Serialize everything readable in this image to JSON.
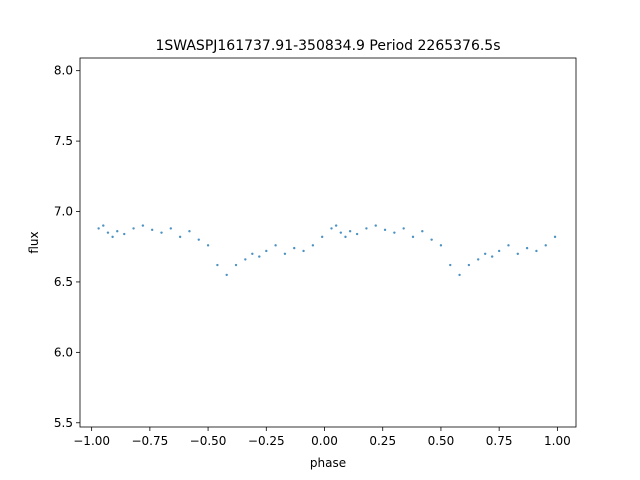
{
  "chart_data": {
    "type": "scatter",
    "title": "1SWASPJ161737.91-350834.9 Period 2265376.5s",
    "xlabel": "phase",
    "ylabel": "flux",
    "xlim": [
      -1.05,
      1.08
    ],
    "ylim": [
      5.47,
      8.09
    ],
    "x_ticks": [
      -1.0,
      -0.75,
      -0.5,
      -0.25,
      0.0,
      0.25,
      0.5,
      0.75,
      1.0
    ],
    "x_tick_labels": [
      "−1.00",
      "−0.75",
      "−0.50",
      "−0.25",
      "0.00",
      "0.25",
      "0.50",
      "0.75",
      "1.00"
    ],
    "y_ticks": [
      5.5,
      6.0,
      6.5,
      7.0,
      7.5,
      8.0
    ],
    "y_tick_labels": [
      "5.5",
      "6.0",
      "6.5",
      "7.0",
      "7.5",
      "8.0"
    ],
    "grid": false,
    "marker_color": "#1f77b4",
    "series": [
      {
        "x": [
          -0.97,
          -0.95,
          -0.93,
          -0.91,
          -0.89,
          -0.86,
          -0.82,
          -0.78,
          -0.74,
          -0.7,
          -0.66,
          -0.62,
          -0.58,
          -0.54,
          -0.5,
          -0.46,
          -0.42,
          -0.38,
          -0.34,
          -0.31,
          -0.28,
          -0.25,
          -0.21,
          -0.17,
          -0.13,
          -0.09,
          -0.05,
          -0.01,
          0.03,
          0.05,
          0.07,
          0.09,
          0.11,
          0.14,
          0.18,
          0.22,
          0.26,
          0.3,
          0.34,
          0.38,
          0.42,
          0.46,
          0.5,
          0.54,
          0.58,
          0.62,
          0.66,
          0.69,
          0.72,
          0.75,
          0.79,
          0.83,
          0.87,
          0.91,
          0.95,
          0.99
        ],
        "y": [
          6.88,
          6.9,
          6.85,
          6.82,
          6.86,
          6.84,
          6.88,
          6.9,
          6.87,
          6.85,
          6.88,
          6.82,
          6.86,
          6.8,
          6.76,
          6.62,
          6.55,
          6.62,
          6.66,
          6.7,
          6.68,
          6.72,
          6.76,
          6.7,
          6.74,
          6.72,
          6.76,
          6.82,
          6.88,
          6.9,
          6.85,
          6.82,
          6.86,
          6.84,
          6.88,
          6.9,
          6.87,
          6.85,
          6.88,
          6.82,
          6.86,
          6.8,
          6.76,
          6.62,
          6.55,
          6.62,
          6.66,
          6.7,
          6.68,
          6.72,
          6.76,
          6.7,
          6.74,
          6.72,
          6.76,
          6.82
        ]
      }
    ]
  }
}
